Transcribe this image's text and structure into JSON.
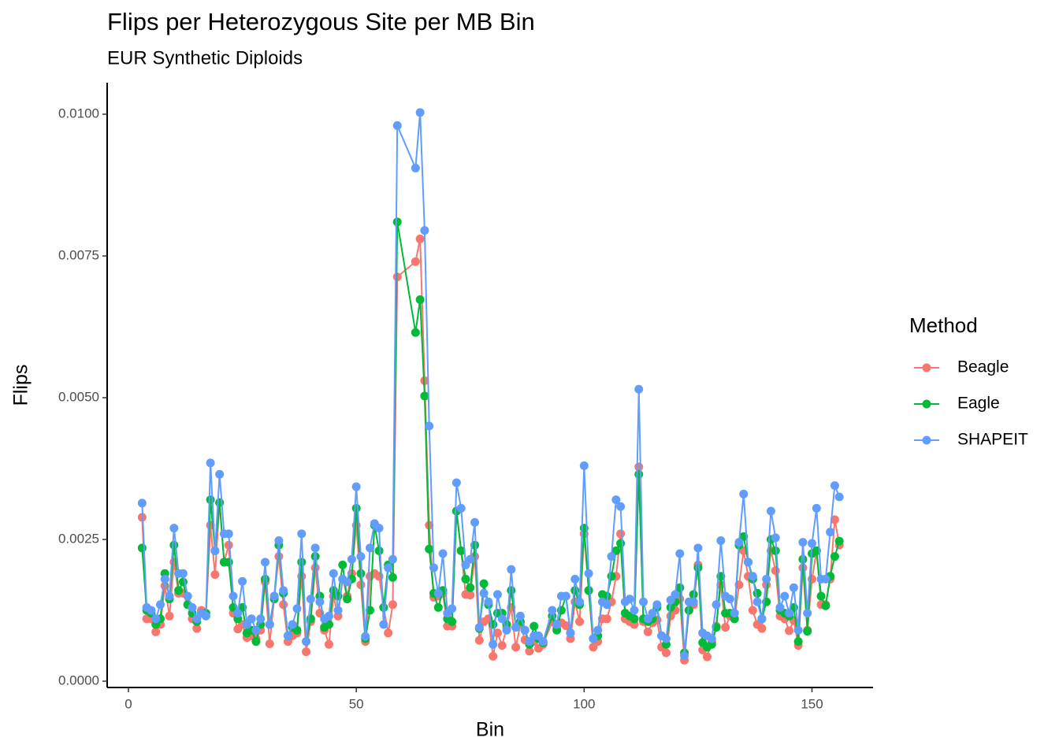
{
  "chart_data": {
    "type": "line",
    "title": "Flips per Heterozygous Site per MB Bin",
    "subtitle": "EUR Synthetic Diploids",
    "x_label": "Bin",
    "y_label": "Flips",
    "legend_title": "Method",
    "legend": "right",
    "xlim": [
      -4.67,
      163.4
    ],
    "ylim": [
      -0.000111,
      0.010556
    ],
    "xticks": [
      0,
      50,
      100,
      150
    ],
    "yticks": [
      {
        "value": 0,
        "label": "0.0000"
      },
      {
        "value": 0.0025,
        "label": "0.0025"
      },
      {
        "value": 0.005,
        "label": "0.0050"
      },
      {
        "value": 0.0075,
        "label": "0.0075"
      },
      {
        "value": 0.01,
        "label": "0.0100"
      }
    ],
    "x": [
      3,
      4,
      5,
      6,
      7,
      8,
      9,
      10,
      11,
      12,
      13,
      14,
      15,
      16,
      17,
      18,
      19,
      20,
      21,
      22,
      23,
      24,
      25,
      26,
      27,
      28,
      29,
      30,
      31,
      32,
      33,
      34,
      35,
      36,
      37,
      38,
      39,
      40,
      41,
      42,
      43,
      44,
      45,
      46,
      47,
      48,
      49,
      50,
      51,
      52,
      53,
      54,
      55,
      56,
      57,
      58,
      59,
      63,
      64,
      65,
      66,
      67,
      68,
      69,
      70,
      71,
      72,
      73,
      74,
      75,
      76,
      77,
      78,
      79,
      80,
      81,
      82,
      83,
      84,
      85,
      86,
      87,
      88,
      89,
      90,
      91,
      93,
      94,
      95,
      96,
      97,
      98,
      99,
      100,
      101,
      102,
      103,
      104,
      105,
      106,
      107,
      108,
      109,
      110,
      111,
      112,
      113,
      114,
      115,
      116,
      117,
      118,
      119,
      120,
      121,
      122,
      123,
      124,
      125,
      126,
      127,
      128,
      129,
      130,
      131,
      132,
      133,
      134,
      135,
      136,
      137,
      138,
      139,
      140,
      141,
      142,
      143,
      144,
      145,
      146,
      147,
      148,
      149,
      150,
      151,
      152,
      153,
      154,
      155,
      156
    ],
    "series": [
      {
        "name": "Beagle",
        "color": "#F8766D",
        "values": [
          0.00289,
          0.0011,
          0.0011,
          0.00087,
          0.001,
          0.00168,
          0.00115,
          0.0021,
          0.00155,
          0.00155,
          0.00135,
          0.0011,
          0.00093,
          0.00125,
          0.00115,
          0.00275,
          0.00188,
          0.00315,
          0.0021,
          0.0024,
          0.0012,
          0.00092,
          0.001,
          0.00077,
          0.0008,
          0.00075,
          0.0009,
          0.00175,
          0.00066,
          0.0015,
          0.0022,
          0.00135,
          0.0007,
          0.0008,
          0.00085,
          0.00185,
          0.00052,
          0.00105,
          0.002,
          0.0012,
          0.0009,
          0.00065,
          0.0015,
          0.00115,
          0.0018,
          0.0015,
          0.0019,
          0.00275,
          0.0017,
          0.0007,
          0.00185,
          0.0019,
          0.00185,
          0.0013,
          0.00085,
          0.00135,
          0.00713,
          0.0074,
          0.0078,
          0.0053,
          0.00275,
          0.00148,
          0.0015,
          0.00155,
          0.00097,
          0.00097,
          0.003,
          0.0023,
          0.00153,
          0.00152,
          0.0022,
          0.00072,
          0.00105,
          0.0011,
          0.00044,
          0.00085,
          0.00063,
          0.00095,
          0.0013,
          0.0006,
          0.001,
          0.00073,
          0.00053,
          0.0007,
          0.00058,
          0.00065,
          0.00105,
          0.00095,
          0.00103,
          0.00098,
          0.00075,
          0.0014,
          0.00105,
          0.0026,
          0.0016,
          0.0006,
          0.0007,
          0.0011,
          0.0011,
          0.0014,
          0.00185,
          0.0026,
          0.0011,
          0.00105,
          0.001,
          0.00378,
          0.00105,
          0.00087,
          0.00103,
          0.00108,
          0.0006,
          0.0005,
          0.00115,
          0.00125,
          0.00145,
          0.00037,
          0.00125,
          0.00135,
          0.00205,
          0.00055,
          0.00043,
          0.0007,
          0.00097,
          0.0017,
          0.00095,
          0.00115,
          0.0011,
          0.0017,
          0.0023,
          0.00185,
          0.00125,
          0.001,
          0.00093,
          0.0017,
          0.0023,
          0.00195,
          0.00115,
          0.0011,
          0.00089,
          0.00107,
          0.00063,
          0.002,
          0.0009,
          0.0018,
          0.0023,
          0.00135,
          0.00135,
          0.0018,
          0.00285,
          0.0024
        ]
      },
      {
        "name": "Eagle",
        "color": "#00BA38",
        "values": [
          0.00235,
          0.00125,
          0.0012,
          0.001,
          0.0011,
          0.0019,
          0.00145,
          0.0024,
          0.0016,
          0.00175,
          0.00135,
          0.0012,
          0.00105,
          0.0012,
          0.0012,
          0.0032,
          0.0023,
          0.00315,
          0.0021,
          0.0021,
          0.0013,
          0.0011,
          0.0013,
          0.00085,
          0.0009,
          0.0007,
          0.001,
          0.0018,
          0.001,
          0.00145,
          0.0024,
          0.00155,
          0.0008,
          0.00095,
          0.0009,
          0.0021,
          0.0007,
          0.0011,
          0.0022,
          0.0015,
          0.00095,
          0.001,
          0.0016,
          0.0015,
          0.00205,
          0.00145,
          0.0018,
          0.00305,
          0.0019,
          0.00075,
          0.00125,
          0.00275,
          0.0023,
          0.0013,
          0.00205,
          0.00183,
          0.0081,
          0.00615,
          0.00673,
          0.00503,
          0.00233,
          0.00155,
          0.0013,
          0.0016,
          0.0011,
          0.00105,
          0.003,
          0.0023,
          0.0018,
          0.00165,
          0.0024,
          0.00093,
          0.00172,
          0.00135,
          0.001,
          0.0012,
          0.0012,
          0.001,
          0.0016,
          0.00095,
          0.00105,
          0.0009,
          0.00065,
          0.00097,
          0.00075,
          0.00068,
          0.00115,
          0.0009,
          0.00125,
          0.0015,
          0.00085,
          0.0016,
          0.00135,
          0.0027,
          0.0016,
          0.00075,
          0.0008,
          0.00153,
          0.0015,
          0.00185,
          0.0023,
          0.00243,
          0.0012,
          0.00115,
          0.0011,
          0.00365,
          0.0011,
          0.00105,
          0.0011,
          0.0013,
          0.0008,
          0.00065,
          0.0013,
          0.0014,
          0.00165,
          0.0005,
          0.00125,
          0.00153,
          0.002,
          0.00068,
          0.0006,
          0.00065,
          0.00095,
          0.00185,
          0.0012,
          0.0012,
          0.0011,
          0.0024,
          0.00255,
          0.0021,
          0.0018,
          0.00155,
          0.0011,
          0.0014,
          0.0025,
          0.0023,
          0.00125,
          0.0012,
          0.00115,
          0.0013,
          0.0007,
          0.00215,
          0.00088,
          0.00225,
          0.0023,
          0.0015,
          0.00133,
          0.00185,
          0.0022,
          0.00247
        ]
      },
      {
        "name": "SHAPEIT",
        "color": "#619CFF",
        "values": [
          0.00314,
          0.0013,
          0.00125,
          0.0011,
          0.00135,
          0.0018,
          0.0015,
          0.0027,
          0.0019,
          0.0019,
          0.0015,
          0.0013,
          0.0011,
          0.0012,
          0.00115,
          0.00385,
          0.0023,
          0.00365,
          0.0026,
          0.0026,
          0.0015,
          0.0012,
          0.00176,
          0.001,
          0.0011,
          0.0009,
          0.0011,
          0.0021,
          0.001,
          0.0015,
          0.00248,
          0.0016,
          0.0008,
          0.001,
          0.00128,
          0.0026,
          0.0007,
          0.00145,
          0.00235,
          0.0014,
          0.0011,
          0.00115,
          0.0019,
          0.00125,
          0.0018,
          0.00175,
          0.00215,
          0.00343,
          0.0022,
          0.00079,
          0.00235,
          0.00278,
          0.0027,
          0.001,
          0.002,
          0.00215,
          0.0098,
          0.00905,
          0.01003,
          0.00795,
          0.0045,
          0.002,
          0.00155,
          0.00225,
          0.0012,
          0.00128,
          0.0035,
          0.00305,
          0.00205,
          0.00215,
          0.0028,
          0.00095,
          0.00155,
          0.0014,
          0.00065,
          0.00153,
          0.0011,
          0.0009,
          0.00197,
          0.00095,
          0.00115,
          0.0009,
          0.0007,
          0.0008,
          0.0008,
          0.0007,
          0.00125,
          0.001,
          0.0015,
          0.0015,
          0.00085,
          0.0018,
          0.0014,
          0.0038,
          0.0019,
          0.00075,
          0.0009,
          0.0014,
          0.00135,
          0.0022,
          0.0032,
          0.00308,
          0.0014,
          0.00145,
          0.00125,
          0.00515,
          0.0014,
          0.0011,
          0.0012,
          0.00135,
          0.0008,
          0.00075,
          0.00143,
          0.00153,
          0.00225,
          0.00045,
          0.0014,
          0.0014,
          0.00235,
          0.00085,
          0.0008,
          0.00075,
          0.00135,
          0.00248,
          0.0015,
          0.00145,
          0.0012,
          0.00245,
          0.0033,
          0.0021,
          0.00185,
          0.0014,
          0.0011,
          0.0018,
          0.003,
          0.00253,
          0.0013,
          0.0015,
          0.0012,
          0.00165,
          0.0009,
          0.00245,
          0.0012,
          0.00243,
          0.00305,
          0.0018,
          0.0018,
          0.00263,
          0.00345,
          0.00325
        ]
      }
    ]
  }
}
